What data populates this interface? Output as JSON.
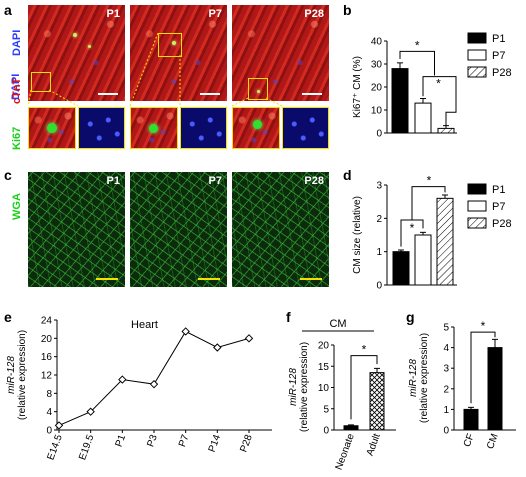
{
  "panels": {
    "a": {
      "letter": "a",
      "stains": [
        "DAPI",
        "cTnT",
        "Ki67"
      ],
      "stain_colors": [
        "#2a3cff",
        "#e01010",
        "#18d018"
      ],
      "images": [
        "P1",
        "P7",
        "P28"
      ]
    },
    "b": {
      "letter": "b"
    },
    "c": {
      "letter": "c",
      "stain": "WGA",
      "stain_color": "#18d018",
      "images": [
        "P1",
        "P7",
        "P28"
      ]
    },
    "d": {
      "letter": "d"
    },
    "e": {
      "letter": "e"
    },
    "f": {
      "letter": "f"
    },
    "g": {
      "letter": "g"
    }
  },
  "chart_data": [
    {
      "id": "b",
      "type": "bar",
      "categories": [
        "P1",
        "P7",
        "P28"
      ],
      "values": [
        28,
        13,
        2
      ],
      "errors": [
        2.5,
        2.0,
        1.2
      ],
      "fills": [
        "solid",
        "open",
        "hatched"
      ],
      "ylabel": "Ki67⁺ CM (%)",
      "ylim": [
        0,
        40
      ],
      "yticks": [
        0,
        10,
        20,
        30,
        40
      ],
      "legend": [
        "P1",
        "P7",
        "P28"
      ],
      "legend_position": "right",
      "significance": [
        "*",
        "*"
      ]
    },
    {
      "id": "d",
      "type": "bar",
      "categories": [
        "P1",
        "P7",
        "P28"
      ],
      "values": [
        1.0,
        1.5,
        2.6
      ],
      "errors": [
        0.05,
        0.08,
        0.1
      ],
      "fills": [
        "solid",
        "open",
        "hatched"
      ],
      "ylabel": "CM size (relative)",
      "ylim": [
        0,
        3
      ],
      "yticks": [
        0,
        1,
        2,
        3
      ],
      "legend": [
        "P1",
        "P7",
        "P28"
      ],
      "legend_position": "right",
      "significance": [
        "*",
        "*"
      ]
    },
    {
      "id": "e",
      "type": "line",
      "title": "Heart",
      "categories": [
        "E14.5",
        "E19.5",
        "P1",
        "P3",
        "P7",
        "P14",
        "P28"
      ],
      "values": [
        1,
        4,
        11,
        10,
        21.5,
        18,
        20
      ],
      "ylabel_italic": "miR-128",
      "ylabel": "(relative expression)",
      "ylim": [
        0,
        24
      ],
      "yticks": [
        0,
        4,
        8,
        12,
        16,
        20,
        24
      ]
    },
    {
      "id": "f",
      "type": "bar",
      "title": "CM",
      "categories": [
        "Neonate",
        "Adult"
      ],
      "values": [
        1,
        13.5
      ],
      "errors": [
        0.2,
        1.0
      ],
      "fills": [
        "solid",
        "crosshatched"
      ],
      "ylabel_italic": "miR-128",
      "ylabel": "(relative expression)",
      "ylim": [
        0,
        20
      ],
      "yticks": [
        0,
        5,
        10,
        15,
        20
      ],
      "significance": [
        "*"
      ]
    },
    {
      "id": "g",
      "type": "bar",
      "categories": [
        "CF",
        "CM"
      ],
      "values": [
        1.0,
        4.0
      ],
      "errors": [
        0.1,
        0.4
      ],
      "fills": [
        "solid",
        "solid"
      ],
      "ylabel_italic": "miR-128",
      "ylabel": "(relative expression)",
      "ylim": [
        0,
        5
      ],
      "yticks": [
        0,
        1,
        2,
        3,
        4,
        5
      ],
      "significance": [
        "*"
      ]
    }
  ]
}
